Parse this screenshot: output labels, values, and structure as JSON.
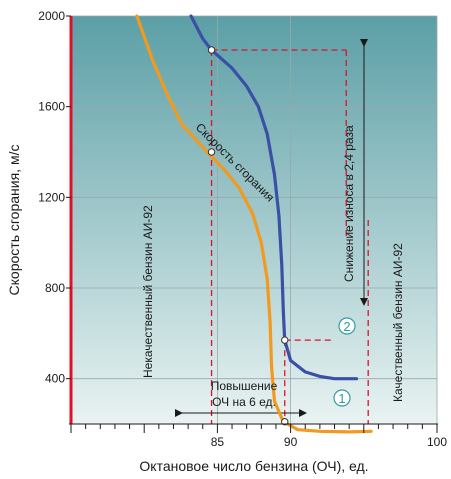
{
  "chart_data": {
    "type": "line",
    "xlabel": "Октановое число бензина (ОЧ), ед.",
    "ylabel": "Скорость сгорания, м/с",
    "xlim": [
      75,
      100
    ],
    "ylim": [
      200,
      2000
    ],
    "x_ticks": [
      {
        "value": 85,
        "label": "85"
      },
      {
        "value": 90,
        "label": "90"
      },
      {
        "value": 100,
        "label": "100"
      }
    ],
    "y_ticks": [
      {
        "value": 400,
        "label": "400"
      },
      {
        "value": 800,
        "label": "800"
      },
      {
        "value": 1200,
        "label": "1200"
      },
      {
        "value": 1600,
        "label": "1600"
      },
      {
        "value": 2000,
        "label": "2000"
      }
    ],
    "grid": true,
    "background": {
      "top": "#5b9fa6",
      "bottom": "#e9f3f2"
    },
    "axis_color": "#e0102a",
    "series": [
      {
        "marker": "2",
        "color": "#3a4fa6",
        "points": [
          [
            83.2,
            2000
          ],
          [
            84.0,
            1900
          ],
          [
            84.6,
            1850
          ],
          [
            86.0,
            1770
          ],
          [
            87.0,
            1690
          ],
          [
            87.8,
            1600
          ],
          [
            88.4,
            1480
          ],
          [
            88.9,
            1300
          ],
          [
            89.2,
            1120
          ],
          [
            89.4,
            900
          ],
          [
            89.5,
            700
          ],
          [
            89.6,
            570
          ],
          [
            90.0,
            480
          ],
          [
            91.0,
            430
          ],
          [
            92.0,
            410
          ],
          [
            93.0,
            400
          ],
          [
            94.5,
            400
          ]
        ]
      },
      {
        "marker": "1",
        "color": "#f39a1e",
        "points": [
          [
            79.5,
            2000
          ],
          [
            80.6,
            1800
          ],
          [
            81.6,
            1650
          ],
          [
            82.6,
            1520
          ],
          [
            84.3,
            1400
          ],
          [
            85.5,
            1320
          ],
          [
            86.5,
            1240
          ],
          [
            87.4,
            1130
          ],
          [
            88.0,
            1000
          ],
          [
            88.4,
            840
          ],
          [
            88.6,
            650
          ],
          [
            88.7,
            450
          ],
          [
            88.9,
            300
          ],
          [
            89.5,
            210
          ],
          [
            90.5,
            175
          ],
          [
            92.0,
            168
          ],
          [
            94.0,
            165
          ],
          [
            95.5,
            168
          ]
        ]
      }
    ],
    "highlight_points": [
      {
        "x": 84.6,
        "y": 1850
      },
      {
        "x": 84.6,
        "y": 1400
      },
      {
        "x": 89.6,
        "y": 570
      },
      {
        "x": 89.6,
        "y": 210
      }
    ],
    "reference_lines": [
      {
        "x1": 84.6,
        "y1": 1850,
        "x2": 93.8,
        "y2": 1850
      },
      {
        "x1": 89.6,
        "y1": 570,
        "x2": 93.0,
        "y2": 570
      },
      {
        "x1": 84.6,
        "y1": 1850,
        "x2": 84.6,
        "y2": 200
      },
      {
        "x1": 89.6,
        "y1": 570,
        "x2": 89.6,
        "y2": 200
      },
      {
        "x1": 93.8,
        "y1": 1850,
        "x2": 93.8,
        "y2": 1020
      },
      {
        "x1": 95.3,
        "y1": 1100,
        "x2": 95.3,
        "y2": 200
      }
    ],
    "annotations": {
      "curve_label": "Скорость сгорания",
      "low_quality": "Некачественный бензин АИ-92",
      "high_quality": "Качественный бензин АИ-92",
      "wear_reduction": "Снижение износа в 2,4 раза",
      "increase_line1": "Повышение",
      "increase_line2": "ОЧ на 6 ед."
    }
  }
}
